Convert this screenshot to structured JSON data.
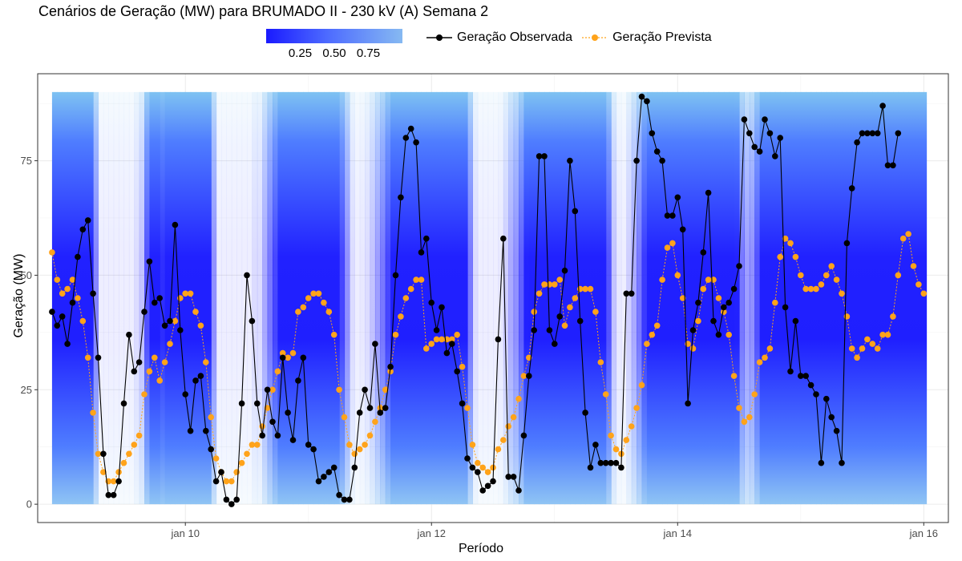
{
  "chart_data": {
    "type": "line",
    "title": "Cenários de Geração (MW) para BRUMADO II - 230 kV (A) Semana 2",
    "xlabel": "Período",
    "ylabel": "Geração (MW)",
    "x_start": "2024-01-08T22:00",
    "x_step_hours": 1,
    "xlim": [
      8.8,
      16.2
    ],
    "ylim": [
      -4,
      94
    ],
    "x_ticks": [
      {
        "value": 10,
        "label": "jan 10"
      },
      {
        "value": 12,
        "label": "jan 12"
      },
      {
        "value": 14,
        "label": "jan 14"
      },
      {
        "value": 16,
        "label": "jan 16"
      }
    ],
    "y_ticks": [
      0,
      25,
      50,
      75
    ],
    "grid": true,
    "legend_position": "top",
    "scenario_band": {
      "name": "",
      "colorbar_labels": [
        "0.25",
        "0.50",
        "0.75"
      ],
      "colorbar_values": [
        0.25,
        0.5,
        0.75
      ],
      "ymin": 0,
      "ymax": 90,
      "color_low": "#1a1aff",
      "color_high": "#86b9f2"
    },
    "series": [
      {
        "name": "Geração Observada",
        "color": "#000000",
        "values": [
          42,
          39,
          41,
          35,
          44,
          54,
          60,
          62,
          46,
          32,
          11,
          2,
          2,
          5,
          22,
          37,
          29,
          31,
          42,
          53,
          44,
          45,
          39,
          40,
          61,
          38,
          24,
          16,
          27,
          28,
          16,
          12,
          5,
          7,
          1,
          0,
          1,
          22,
          50,
          40,
          22,
          15,
          25,
          18,
          15,
          32,
          20,
          14,
          27,
          32,
          13,
          12,
          5,
          6,
          7,
          8,
          2,
          1,
          1,
          8,
          20,
          25,
          21,
          35,
          20,
          21,
          30,
          50,
          67,
          80,
          82,
          79,
          55,
          58,
          44,
          38,
          43,
          33,
          35,
          29,
          22,
          10,
          8,
          7,
          3,
          4,
          5,
          36,
          58,
          6,
          6,
          3,
          15,
          28,
          38,
          76,
          76,
          38,
          35,
          41,
          51,
          75,
          64,
          40,
          20,
          8,
          13,
          9,
          9,
          9,
          9,
          8,
          46,
          46,
          75,
          89,
          88,
          81,
          77,
          75,
          63,
          63,
          67,
          60,
          22,
          38,
          44,
          55,
          68,
          40,
          37,
          43,
          44,
          47,
          52,
          84,
          81,
          78,
          77,
          84,
          81,
          76,
          80,
          43,
          29,
          40,
          28,
          28,
          26,
          24,
          9,
          23,
          19,
          16,
          9,
          57,
          69,
          79,
          81,
          81,
          81,
          81,
          87,
          74,
          74,
          81
        ]
      },
      {
        "name": "Geração Prevista",
        "color": "#ffa31a",
        "values": [
          55,
          49,
          46,
          47,
          49,
          45,
          40,
          32,
          20,
          11,
          7,
          5,
          5,
          7,
          9,
          11,
          13,
          15,
          24,
          29,
          32,
          27,
          31,
          35,
          40,
          45,
          46,
          46,
          42,
          39,
          31,
          19,
          10,
          7,
          5,
          5,
          7,
          9,
          11,
          13,
          13,
          17,
          21,
          25,
          29,
          33,
          32,
          33,
          42,
          43,
          45,
          46,
          46,
          44,
          42,
          37,
          25,
          19,
          13,
          11,
          12,
          13,
          15,
          18,
          21,
          25,
          29,
          37,
          41,
          45,
          47,
          49,
          49,
          34,
          35,
          36,
          36,
          36,
          36,
          37,
          30,
          21,
          13,
          9,
          8,
          7,
          8,
          12,
          14,
          17,
          19,
          23,
          28,
          32,
          42,
          46,
          48,
          48,
          48,
          49,
          39,
          43,
          45,
          47,
          47,
          47,
          42,
          31,
          24,
          15,
          12,
          11,
          14,
          17,
          21,
          26,
          35,
          37,
          39,
          49,
          56,
          57,
          50,
          45,
          35,
          34,
          40,
          47,
          49,
          49,
          45,
          42,
          37,
          28,
          21,
          18,
          19,
          24,
          31,
          32,
          34,
          44,
          54,
          58,
          57,
          54,
          50,
          47,
          47,
          47,
          48,
          50,
          52,
          49,
          46,
          41,
          34,
          32,
          34,
          36,
          35,
          34,
          37,
          37,
          41,
          50,
          58,
          59,
          52,
          48,
          46
        ]
      }
    ]
  }
}
